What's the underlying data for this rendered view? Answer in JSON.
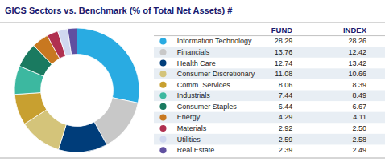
{
  "chart_data": {
    "type": "pie",
    "title": "GICS Sectors vs. Benchmark (% of Total Net Assets) #",
    "categories": [
      "Information Technology",
      "Financials",
      "Health Care",
      "Consumer Discretionary",
      "Comm. Services",
      "Industrials",
      "Consumer Staples",
      "Energy",
      "Materials",
      "Utilities",
      "Real Estate"
    ],
    "series": [
      {
        "name": "FUND",
        "values": [
          28.29,
          13.76,
          12.74,
          11.08,
          8.06,
          7.44,
          6.44,
          4.29,
          2.92,
          2.59,
          2.39
        ],
        "value_labels": [
          "28.29",
          "13.76",
          "12.74",
          "11.08",
          "8.06",
          "7.44",
          "6.44",
          "4.29",
          "2.92",
          "2.59",
          "2.39"
        ]
      },
      {
        "name": "INDEX",
        "values": [
          28.26,
          12.42,
          13.42,
          10.66,
          8.39,
          8.49,
          6.67,
          4.11,
          2.5,
          2.58,
          2.49
        ],
        "value_labels": [
          "28.26",
          "12.42",
          "13.42",
          "10.66",
          "8.39",
          "8.49",
          "6.67",
          "4.11",
          "2.50",
          "2.58",
          "2.49"
        ]
      }
    ],
    "colors": [
      "#29ABE2",
      "#C8C8C8",
      "#003D7A",
      "#D4C47A",
      "#C8A030",
      "#3CB8A0",
      "#1A7A60",
      "#C87820",
      "#B03050",
      "#D0D8F0",
      "#6050A0"
    ],
    "legend": "right",
    "data_labels": true
  }
}
